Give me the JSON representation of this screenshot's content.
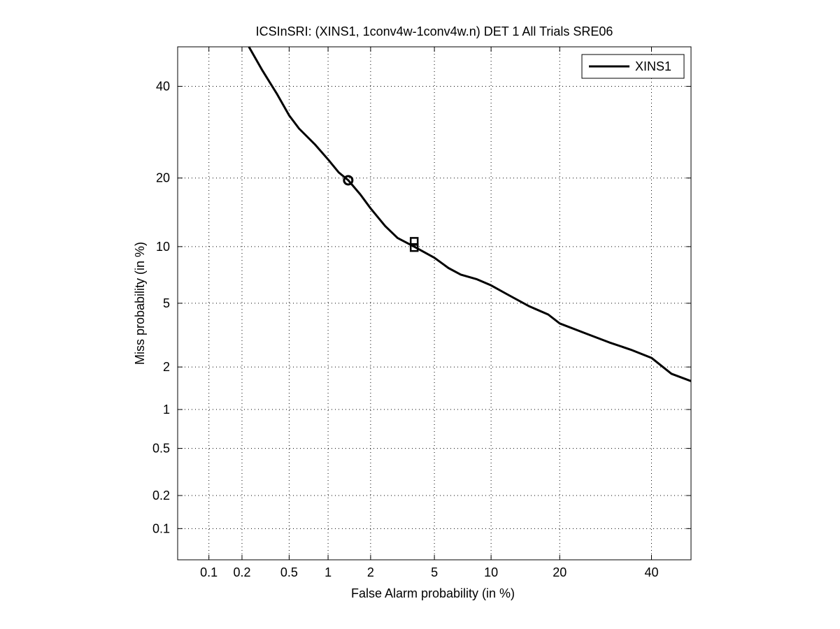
{
  "chart_data": {
    "type": "line",
    "title": "ICSInSRI: (XINS1, 1conv4w-1conv4w.n) DET 1 All Trials SRE06",
    "xlabel": "False Alarm probability (in %)",
    "ylabel": "Miss probability (in %)",
    "x_scale": "probit",
    "y_scale": "probit",
    "xlim": [
      0.05,
      50
    ],
    "ylim": [
      0.05,
      50
    ],
    "x_ticks": [
      0.1,
      0.2,
      0.5,
      1,
      2,
      5,
      10,
      20,
      40
    ],
    "x_tick_labels": [
      "0.1",
      "0.2",
      "0.5",
      "1",
      "2",
      "5",
      "10",
      "20",
      "40"
    ],
    "y_ticks": [
      0.1,
      0.2,
      0.5,
      1,
      2,
      5,
      10,
      20,
      40
    ],
    "y_tick_labels": [
      "0.1",
      "0.2",
      "0.5",
      "1",
      "2",
      "5",
      "10",
      "20",
      "40"
    ],
    "grid": "dotted",
    "legend": {
      "position": "top-right",
      "entries": [
        "XINS1"
      ]
    },
    "series": [
      {
        "name": "XINS1",
        "color": "#000000",
        "x": [
          0.23,
          0.3,
          0.4,
          0.5,
          0.6,
          0.8,
          1.0,
          1.2,
          1.4,
          1.7,
          2.0,
          2.5,
          3.0,
          3.8,
          5.0,
          6.0,
          7.0,
          8.5,
          10.0,
          12.0,
          15.0,
          18.0,
          20.0,
          25.0,
          30.0,
          35.0,
          40.0,
          45.0,
          50.0
        ],
        "y": [
          50.0,
          44.0,
          38.0,
          33.0,
          30.0,
          26.5,
          23.5,
          21.0,
          19.6,
          17.2,
          15.0,
          12.5,
          11.0,
          10.0,
          8.8,
          7.8,
          7.2,
          6.8,
          6.3,
          5.6,
          4.8,
          4.3,
          3.8,
          3.3,
          2.9,
          2.6,
          2.3,
          1.8,
          1.6
        ]
      }
    ],
    "markers": [
      {
        "name": "min-dcf-circle",
        "shape": "circle",
        "x": 1.4,
        "y": 19.6
      },
      {
        "name": "act-dcf-square-upper",
        "shape": "square",
        "x": 3.8,
        "y": 10.6
      },
      {
        "name": "act-dcf-square-lower",
        "shape": "square",
        "x": 3.8,
        "y": 9.9
      }
    ]
  }
}
